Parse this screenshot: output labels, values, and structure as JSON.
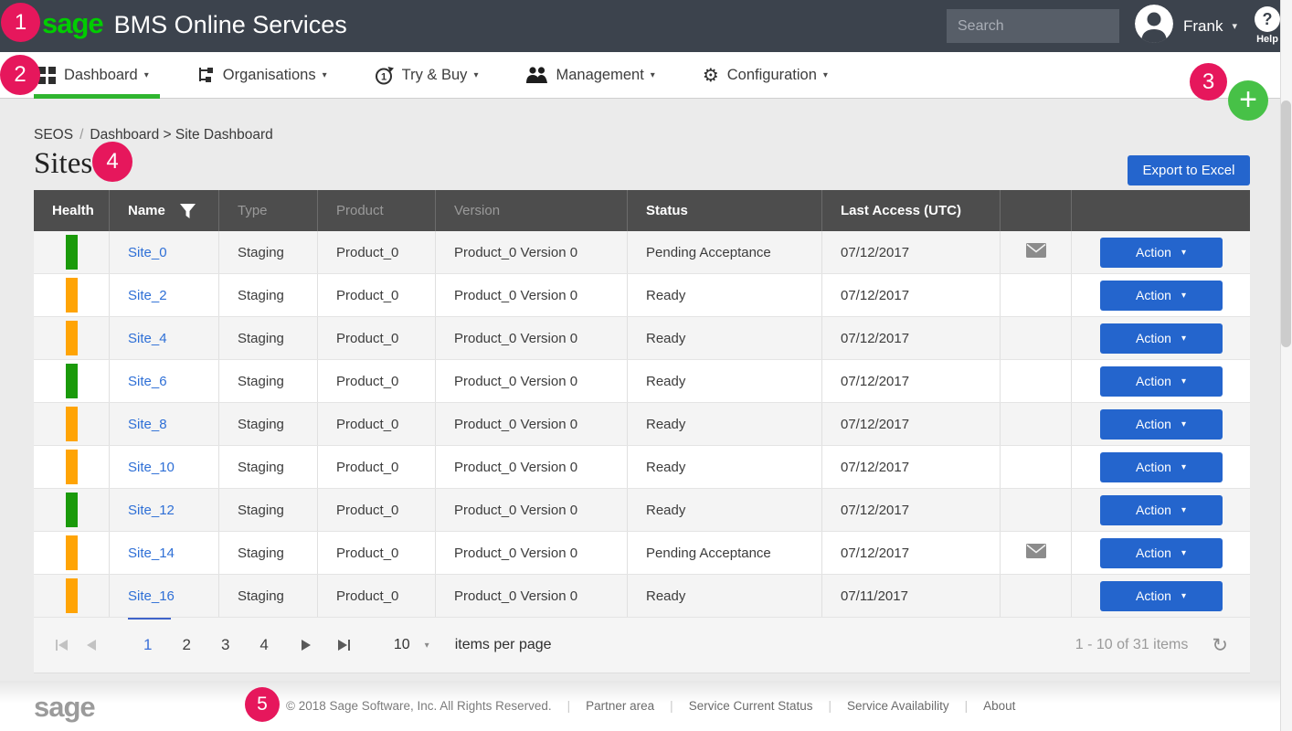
{
  "colors": {
    "header_bg": "#3c434d",
    "logo_green": "#00cd00",
    "nav_active_underline": "#2fb52f",
    "button_blue": "#2465cd",
    "link_blue": "#2e6fd6",
    "annotation_pink": "#e6175c",
    "plus_green": "#47c147",
    "health_green": "#1a9a0a",
    "health_orange": "#ffa405",
    "table_header_bg": "#4d4d4d"
  },
  "annotations": {
    "n1": "1",
    "n2": "2",
    "n3": "3",
    "n4": "4",
    "n5": "5"
  },
  "header": {
    "logo": "sage",
    "title": "BMS Online Services",
    "search_placeholder": "Search",
    "user_name": "Frank",
    "help_icon": "?",
    "help_label": "Help"
  },
  "nav": {
    "items": [
      {
        "label": "Dashboard",
        "active": true
      },
      {
        "label": "Organisations",
        "active": false
      },
      {
        "label": "Try & Buy",
        "active": false
      },
      {
        "label": "Management",
        "active": false
      },
      {
        "label": "Configuration",
        "active": false
      }
    ]
  },
  "breadcrumb": {
    "root": "SEOS",
    "separator": "/",
    "path": "Dashboard > Site Dashboard"
  },
  "page": {
    "title": "Sites",
    "export_button": "Export to Excel"
  },
  "table": {
    "columns": {
      "health": "Health",
      "name": "Name",
      "type": "Type",
      "product": "Product",
      "version": "Version",
      "status": "Status",
      "last_access": "Last Access (UTC)"
    },
    "action_label": "Action",
    "rows": [
      {
        "health": "green",
        "name": "Site_0",
        "type": "Staging",
        "product": "Product_0",
        "version": "Product_0 Version 0",
        "status": "Pending Acceptance",
        "last_access": "07/12/2017",
        "mail": true,
        "underlined": false
      },
      {
        "health": "orange",
        "name": "Site_2",
        "type": "Staging",
        "product": "Product_0",
        "version": "Product_0 Version 0",
        "status": "Ready",
        "last_access": "07/12/2017",
        "mail": false,
        "underlined": false
      },
      {
        "health": "orange",
        "name": "Site_4",
        "type": "Staging",
        "product": "Product_0",
        "version": "Product_0 Version 0",
        "status": "Ready",
        "last_access": "07/12/2017",
        "mail": false,
        "underlined": false
      },
      {
        "health": "green",
        "name": "Site_6",
        "type": "Staging",
        "product": "Product_0",
        "version": "Product_0 Version 0",
        "status": "Ready",
        "last_access": "07/12/2017",
        "mail": false,
        "underlined": false
      },
      {
        "health": "orange",
        "name": "Site_8",
        "type": "Staging",
        "product": "Product_0",
        "version": "Product_0 Version 0",
        "status": "Ready",
        "last_access": "07/12/2017",
        "mail": false,
        "underlined": false
      },
      {
        "health": "orange",
        "name": "Site_10",
        "type": "Staging",
        "product": "Product_0",
        "version": "Product_0 Version 0",
        "status": "Ready",
        "last_access": "07/12/2017",
        "mail": false,
        "underlined": false
      },
      {
        "health": "green",
        "name": "Site_12",
        "type": "Staging",
        "product": "Product_0",
        "version": "Product_0 Version 0",
        "status": "Ready",
        "last_access": "07/12/2017",
        "mail": false,
        "underlined": false
      },
      {
        "health": "orange",
        "name": "Site_14",
        "type": "Staging",
        "product": "Product_0",
        "version": "Product_0 Version 0",
        "status": "Pending Acceptance",
        "last_access": "07/12/2017",
        "mail": true,
        "underlined": false
      },
      {
        "health": "orange",
        "name": "Site_16",
        "type": "Staging",
        "product": "Product_0",
        "version": "Product_0 Version 0",
        "status": "Ready",
        "last_access": "07/11/2017",
        "mail": false,
        "underlined": true
      }
    ]
  },
  "pagination": {
    "pages": [
      "1",
      "2",
      "3",
      "4"
    ],
    "current_page": "1",
    "page_size": "10",
    "items_per_page_label": "items per page",
    "range_label": "1 - 10 of 31 items"
  },
  "footer": {
    "logo": "sage",
    "copyright": "© 2018 Sage Software, Inc. All Rights Reserved.",
    "links": [
      "Partner area",
      "Service Current Status",
      "Service Availability",
      "About"
    ]
  }
}
